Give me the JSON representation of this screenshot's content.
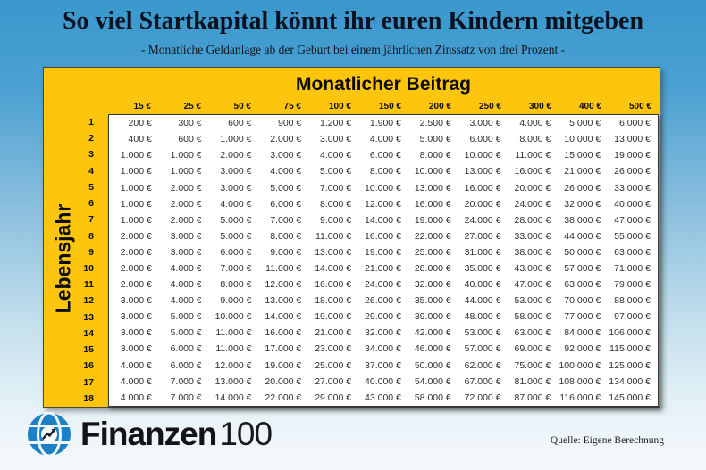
{
  "page": {
    "title": "So viel Startkapital könnt ihr euren Kindern mitgeben",
    "subtitle": "- Monatliche Geldanlage ab der Geburt bei einem jährlichen Zinssatz von drei Prozent -",
    "source": "Quelle: Eigene Berechnung"
  },
  "logo": {
    "brand_bold": "Finanzen",
    "brand_light": "100",
    "icon": "globe-chart-icon",
    "icon_color": "#1c80c6"
  },
  "colors": {
    "background_top": "#3a98cd",
    "background_bottom": "#f5f9fc",
    "panel_yellow": "#fdc60d",
    "table_background": "#ffffff",
    "text_dark": "#0b0b0b"
  },
  "chart_data": {
    "type": "table",
    "title": "Monatlicher Beitrag",
    "row_axis_label": "Lebensjahr",
    "columns": [
      "15 €",
      "25 €",
      "50 €",
      "75 €",
      "100 €",
      "150 €",
      "200 €",
      "250 €",
      "300 €",
      "400 €",
      "500 €"
    ],
    "years": [
      "1",
      "2",
      "3",
      "4",
      "5",
      "6",
      "7",
      "8",
      "9",
      "10",
      "11",
      "12",
      "13",
      "14",
      "15",
      "16",
      "17",
      "18"
    ],
    "values": [
      [
        "200 €",
        "300 €",
        "600 €",
        "900 €",
        "1.200 €",
        "1.900 €",
        "2.500 €",
        "3.000 €",
        "4.000 €",
        "5.000 €",
        "6.000 €"
      ],
      [
        "400 €",
        "600 €",
        "1.000 €",
        "2.000 €",
        "3.000 €",
        "4.000 €",
        "5.000 €",
        "6.000 €",
        "8.000 €",
        "10.000 €",
        "13.000 €"
      ],
      [
        "1.000 €",
        "1.000 €",
        "2.000 €",
        "3.000 €",
        "4.000 €",
        "6.000 €",
        "8.000 €",
        "10.000 €",
        "11.000 €",
        "15.000 €",
        "19.000 €"
      ],
      [
        "1.000 €",
        "1.000 €",
        "3.000 €",
        "4.000 €",
        "5.000 €",
        "8.000 €",
        "10.000 €",
        "13.000 €",
        "16.000 €",
        "21.000 €",
        "26.000 €"
      ],
      [
        "1.000 €",
        "2.000 €",
        "3.000 €",
        "5.000 €",
        "7.000 €",
        "10.000 €",
        "13.000 €",
        "16.000 €",
        "20.000 €",
        "26.000 €",
        "33.000 €"
      ],
      [
        "1.000 €",
        "2.000 €",
        "4.000 €",
        "6.000 €",
        "8.000 €",
        "12.000 €",
        "16.000 €",
        "20.000 €",
        "24.000 €",
        "32.000 €",
        "40.000 €"
      ],
      [
        "1.000 €",
        "2.000 €",
        "5.000 €",
        "7.000 €",
        "9.000 €",
        "14.000 €",
        "19.000 €",
        "24.000 €",
        "28.000 €",
        "38.000 €",
        "47.000 €"
      ],
      [
        "2.000 €",
        "3.000 €",
        "5.000 €",
        "8.000 €",
        "11.000 €",
        "16.000 €",
        "22.000 €",
        "27.000 €",
        "33.000 €",
        "44.000 €",
        "55.000 €"
      ],
      [
        "2.000 €",
        "3.000 €",
        "6.000 €",
        "9.000 €",
        "13.000 €",
        "19.000 €",
        "25.000 €",
        "31.000 €",
        "38.000 €",
        "50.000 €",
        "63.000 €"
      ],
      [
        "2.000 €",
        "4.000 €",
        "7.000 €",
        "11.000 €",
        "14.000 €",
        "21.000 €",
        "28.000 €",
        "35.000 €",
        "43.000 €",
        "57.000 €",
        "71.000 €"
      ],
      [
        "2.000 €",
        "4.000 €",
        "8.000 €",
        "12.000 €",
        "16.000 €",
        "24.000 €",
        "32.000 €",
        "40.000 €",
        "47.000 €",
        "63.000 €",
        "79.000 €"
      ],
      [
        "3.000 €",
        "4.000 €",
        "9.000 €",
        "13.000 €",
        "18.000 €",
        "26.000 €",
        "35.000 €",
        "44.000 €",
        "53.000 €",
        "70.000 €",
        "88.000 €"
      ],
      [
        "3.000 €",
        "5.000 €",
        "10.000 €",
        "14.000 €",
        "19.000 €",
        "29.000 €",
        "39.000 €",
        "48.000 €",
        "58.000 €",
        "77.000 €",
        "97.000 €"
      ],
      [
        "3.000 €",
        "5.000 €",
        "11.000 €",
        "16.000 €",
        "21.000 €",
        "32.000 €",
        "42.000 €",
        "53.000 €",
        "63.000 €",
        "84.000 €",
        "106.000 €"
      ],
      [
        "3.000 €",
        "6.000 €",
        "11.000 €",
        "17.000 €",
        "23.000 €",
        "34.000 €",
        "46.000 €",
        "57.000 €",
        "69.000 €",
        "92.000 €",
        "115.000 €"
      ],
      [
        "4.000 €",
        "6.000 €",
        "12.000 €",
        "19.000 €",
        "25.000 €",
        "37.000 €",
        "50.000 €",
        "62.000 €",
        "75.000 €",
        "100.000 €",
        "125.000 €"
      ],
      [
        "4.000 €",
        "7.000 €",
        "13.000 €",
        "20.000 €",
        "27.000 €",
        "40.000 €",
        "54.000 €",
        "67.000 €",
        "81.000 €",
        "108.000 €",
        "134.000 €"
      ],
      [
        "4.000 €",
        "7.000 €",
        "14.000 €",
        "22.000 €",
        "29.000 €",
        "43.000 €",
        "58.000 €",
        "72.000 €",
        "87.000 €",
        "116.000 €",
        "145.000 €"
      ]
    ]
  }
}
